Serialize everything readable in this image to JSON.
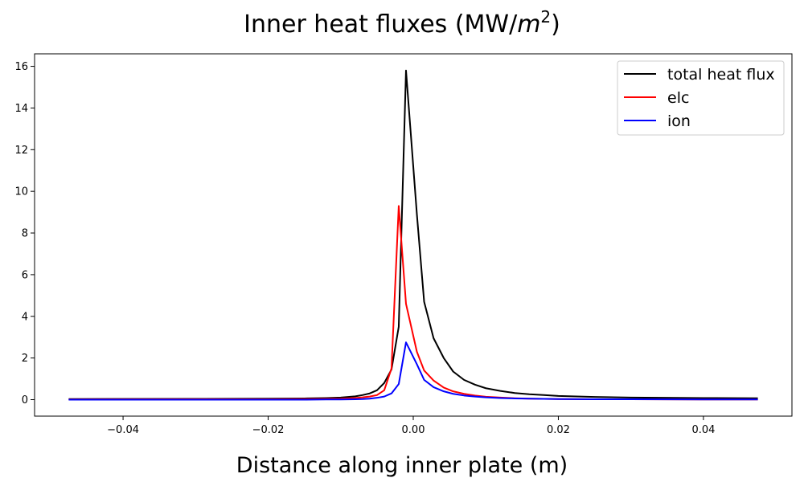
{
  "chart_data": {
    "type": "line",
    "title_base": "Inner heat fluxes (MW/",
    "title_var": "m",
    "title_sup": "2",
    "title_close": ")",
    "xlabel": "Distance along inner plate (m)",
    "ylabel": "",
    "xlim": [
      -0.0522,
      0.0522
    ],
    "ylim": [
      -0.79,
      16.6
    ],
    "xticks": [
      -0.04,
      -0.02,
      0.0,
      0.02,
      0.04
    ],
    "xtick_labels": [
      "−0.04",
      "−0.02",
      "0.00",
      "0.02",
      "0.04"
    ],
    "yticks": [
      0,
      2,
      4,
      6,
      8,
      10,
      12,
      14,
      16
    ],
    "ytick_labels": [
      "0",
      "2",
      "4",
      "6",
      "8",
      "10",
      "12",
      "14",
      "16"
    ],
    "grid": false,
    "legend_position": "top-right",
    "x": [
      -0.0475,
      -0.03,
      -0.02,
      -0.015,
      -0.012,
      -0.01,
      -0.008,
      -0.007,
      -0.006,
      -0.005,
      -0.004,
      -0.003,
      -0.002,
      -0.001,
      0.0005,
      0.0015,
      0.0028,
      0.0042,
      0.0055,
      0.007,
      0.0085,
      0.01,
      0.012,
      0.014,
      0.016,
      0.018,
      0.02,
      0.025,
      0.03,
      0.04,
      0.0475
    ],
    "series": [
      {
        "name": "total heat flux",
        "color": "#000000",
        "values": [
          0.03,
          0.04,
          0.05,
          0.06,
          0.08,
          0.1,
          0.16,
          0.22,
          0.3,
          0.45,
          0.8,
          1.45,
          3.5,
          15.8,
          8.9,
          4.7,
          2.95,
          2.0,
          1.35,
          0.95,
          0.72,
          0.55,
          0.42,
          0.32,
          0.26,
          0.22,
          0.18,
          0.13,
          0.1,
          0.08,
          0.07
        ]
      },
      {
        "name": "elc",
        "color": "#ff0000",
        "values": [
          0.01,
          0.02,
          0.02,
          0.03,
          0.04,
          0.05,
          0.08,
          0.11,
          0.15,
          0.22,
          0.45,
          1.5,
          9.3,
          4.6,
          2.3,
          1.4,
          0.92,
          0.58,
          0.4,
          0.28,
          0.2,
          0.14,
          0.1,
          0.07,
          0.05,
          0.04,
          0.03,
          0.02,
          0.02,
          0.01,
          0.01
        ]
      },
      {
        "name": "ion",
        "color": "#0000ff",
        "values": [
          0.0,
          0.0,
          0.0,
          0.0,
          0.01,
          0.01,
          0.02,
          0.03,
          0.05,
          0.09,
          0.15,
          0.3,
          0.75,
          2.75,
          1.7,
          0.95,
          0.6,
          0.4,
          0.28,
          0.2,
          0.15,
          0.11,
          0.08,
          0.06,
          0.05,
          0.04,
          0.03,
          0.02,
          0.02,
          0.01,
          0.01
        ]
      }
    ]
  }
}
